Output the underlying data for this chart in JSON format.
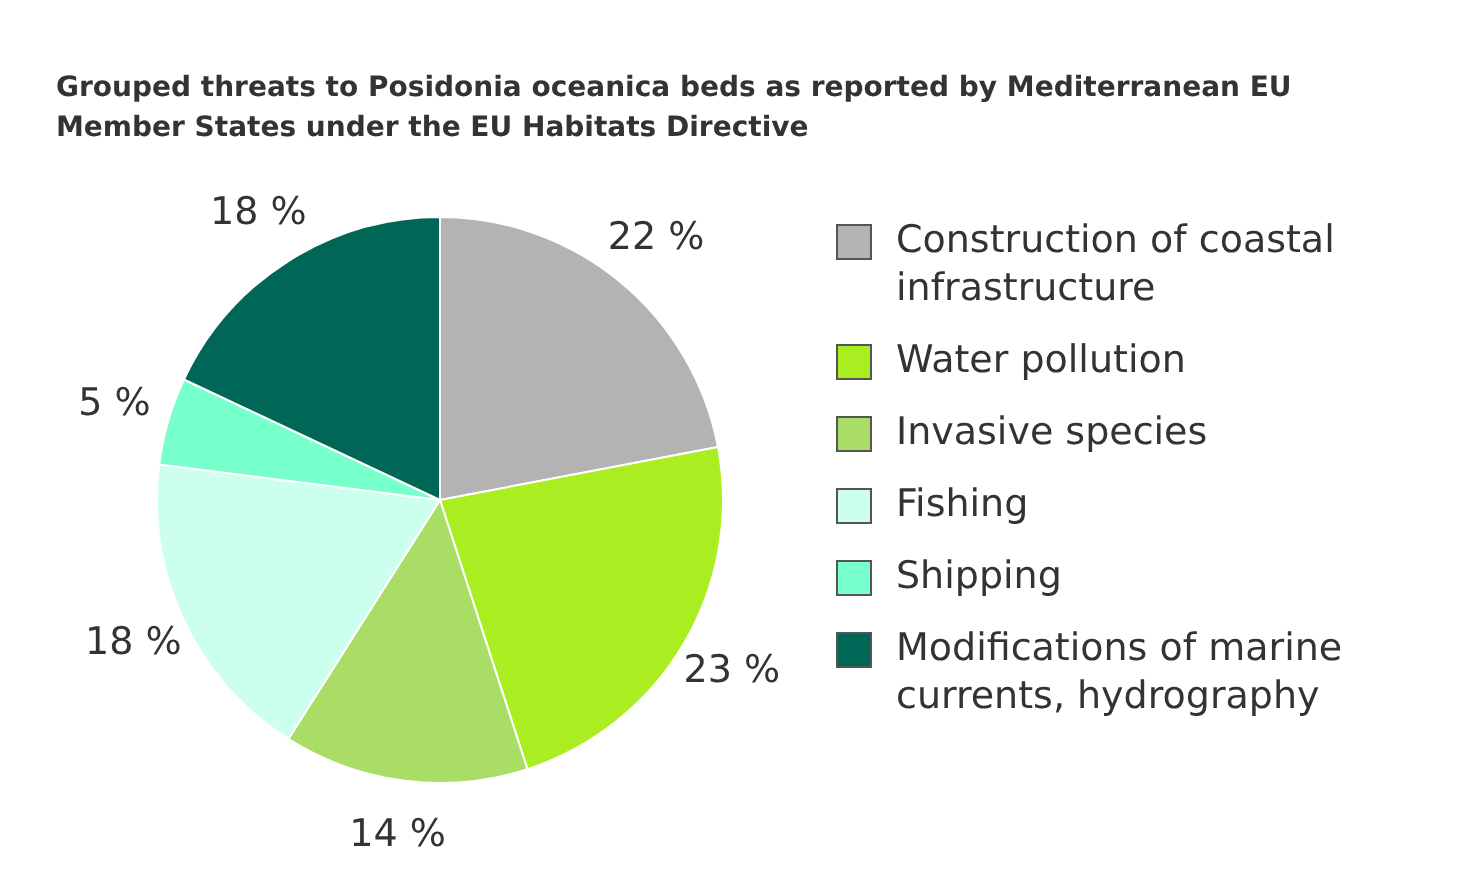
{
  "chart_data": {
    "type": "pie",
    "title": "Grouped threats to Posidonia oceanica beds as reported by Mediterranean EU Member States under the EU Habitats Directive",
    "categories": [
      "Construction of coastal infrastructure",
      "Water pollution",
      "Invasive species",
      "Fishing",
      "Shipping",
      "Modifications of marine currents, hydrography"
    ],
    "values": [
      22,
      23,
      14,
      18,
      5,
      18
    ],
    "value_labels": [
      "22 %",
      "23 %",
      "14 %",
      "18 %",
      "5 %",
      "18 %"
    ],
    "colors": [
      "#b3b3b3",
      "#aaee22",
      "#a9dd66",
      "#ccffee",
      "#77ffcc",
      "#006655"
    ],
    "legend": "right"
  }
}
